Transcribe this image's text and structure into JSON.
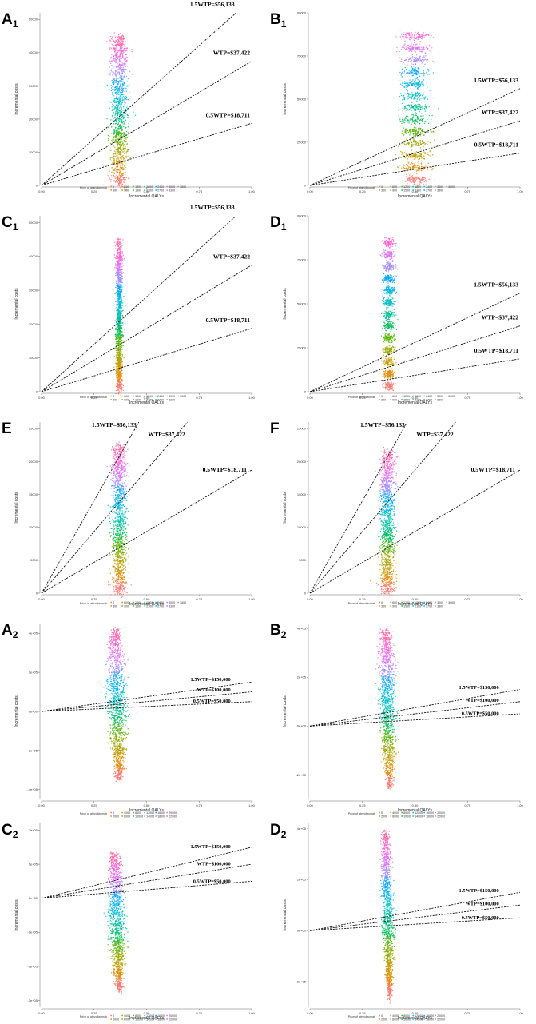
{
  "chart_data": [
    {
      "panel": "A",
      "subscript": "1",
      "type": "scatter",
      "xlabel": "Incremental QALYs",
      "ylabel": "Incremental costs",
      "xlim": [
        0,
        1
      ],
      "ylim": [
        0,
        52000
      ],
      "xticks": [
        "0.00",
        "0.25",
        "0.50",
        "0.75",
        "1.00"
      ],
      "yticks": [
        {
          "v": 0,
          "label": "0"
        },
        {
          "v": 10000,
          "label": "10000"
        },
        {
          "v": 20000,
          "label": "20000"
        },
        {
          "v": 30000,
          "label": "30000"
        },
        {
          "v": 40000,
          "label": "40000"
        },
        {
          "v": 50000,
          "label": "50000"
        }
      ],
      "cloud": {
        "x_center": 0.37,
        "x_halfwidth": 0.045,
        "y_min": 0,
        "y_max": 45000,
        "banded": false,
        "taper": false
      },
      "wtp_lines": [
        {
          "label": "1.5WTP=$56,133",
          "slope": 56133
        },
        {
          "label": "WTP=$37,422",
          "slope": 37422
        },
        {
          "label": "0.5WTP=$18,711",
          "slope": 18711
        }
      ],
      "legend": {
        "title": "Price of atezolizumab",
        "values": [
          "0",
          "300",
          "600",
          "900",
          "1200",
          "1500",
          "1800",
          "2100",
          "2400",
          "2700",
          "3000",
          "3300",
          "3600"
        ]
      }
    },
    {
      "panel": "B",
      "subscript": "1",
      "type": "scatter",
      "xlabel": "Incremental QALYs",
      "ylabel": "Incremental costs",
      "xlim": [
        0,
        1
      ],
      "ylim": [
        0,
        100000
      ],
      "xticks": [
        "0.00",
        "0.25",
        "0.50",
        "0.75",
        "1.00"
      ],
      "yticks": [
        {
          "v": 0,
          "label": "0"
        },
        {
          "v": 25000,
          "label": "25000"
        },
        {
          "v": 50000,
          "label": "50000"
        },
        {
          "v": 75000,
          "label": "75000"
        },
        {
          "v": 100000,
          "label": "100000"
        }
      ],
      "cloud": {
        "x_center": 0.5,
        "x_halfwidth": 0.075,
        "y_min": 0,
        "y_max": 90000,
        "banded": true,
        "taper": false
      },
      "wtp_lines": [
        {
          "label": "1.5WTP=$56,133",
          "slope": 56133
        },
        {
          "label": "WTP=$37,422",
          "slope": 37422
        },
        {
          "label": "0.5WTP=$18,711",
          "slope": 18711
        }
      ],
      "legend": {
        "title": "Price of atezolizumab",
        "values": [
          "0",
          "300",
          "600",
          "900",
          "1200",
          "1500",
          "1800",
          "2100",
          "2400",
          "2700",
          "3000",
          "3300",
          "3600"
        ]
      }
    },
    {
      "panel": "C",
      "subscript": "1",
      "type": "scatter",
      "xlabel": "Incremental QALYs",
      "ylabel": "Incremental costs",
      "xlim": [
        0,
        1
      ],
      "ylim": [
        0,
        52000
      ],
      "xticks": [
        "0.00",
        "0.25",
        "0.50",
        "0.75",
        "1.00"
      ],
      "yticks": [
        {
          "v": 0,
          "label": "0"
        },
        {
          "v": 10000,
          "label": "10000"
        },
        {
          "v": 20000,
          "label": "20000"
        },
        {
          "v": 30000,
          "label": "30000"
        },
        {
          "v": 40000,
          "label": "40000"
        },
        {
          "v": 50000,
          "label": "50000"
        }
      ],
      "cloud": {
        "x_center": 0.37,
        "x_halfwidth": 0.018,
        "y_min": 0,
        "y_max": 45000,
        "banded": false,
        "taper": false
      },
      "wtp_lines": [
        {
          "label": "1.5WTP=$56,133",
          "slope": 56133
        },
        {
          "label": "WTP=$37,422",
          "slope": 37422
        },
        {
          "label": "0.5WTP=$18,711",
          "slope": 18711
        }
      ],
      "legend": {
        "title": "Price of atezolizumab",
        "values": [
          "0",
          "300",
          "600",
          "900",
          "1200",
          "1500",
          "1800",
          "2100",
          "2400",
          "2700",
          "3000",
          "3300",
          "3600"
        ]
      }
    },
    {
      "panel": "D",
      "subscript": "1",
      "type": "scatter",
      "xlabel": "Incremental QALYs",
      "ylabel": "Incremental costs",
      "xlim": [
        0,
        1
      ],
      "ylim": [
        0,
        100000
      ],
      "xticks": [
        "0.00",
        "0.25",
        "0.50",
        "0.75",
        "1.00"
      ],
      "yticks": [
        {
          "v": 0,
          "label": "0"
        },
        {
          "v": 25000,
          "label": "25000"
        },
        {
          "v": 50000,
          "label": "50000"
        },
        {
          "v": 75000,
          "label": "75000"
        },
        {
          "v": 100000,
          "label": "100000"
        }
      ],
      "cloud": {
        "x_center": 0.375,
        "x_halfwidth": 0.03,
        "y_min": 0,
        "y_max": 88000,
        "banded": true,
        "taper": false
      },
      "wtp_lines": [
        {
          "label": "1.5WTP=$56,133",
          "slope": 56133
        },
        {
          "label": "WTP=$37,422",
          "slope": 37422
        },
        {
          "label": "0.5WTP=$18,711",
          "slope": 18711
        }
      ],
      "legend": {
        "title": "Price of atezolizumab",
        "values": [
          "0",
          "300",
          "600",
          "900",
          "1200",
          "1500",
          "1800",
          "2100",
          "2400",
          "2700",
          "3000",
          "3300",
          "3600"
        ]
      }
    },
    {
      "panel": "E",
      "subscript": "",
      "type": "scatter",
      "xlabel": "Incremental QALYs",
      "ylabel": "Incremental costs",
      "xlim": [
        0,
        1
      ],
      "ylim": [
        0,
        26000
      ],
      "xticks": [
        "0.00",
        "0.25",
        "0.50",
        "0.75",
        "1.00"
      ],
      "yticks": [
        {
          "v": 0,
          "label": "0"
        },
        {
          "v": 5000,
          "label": "5000"
        },
        {
          "v": 10000,
          "label": "10000"
        },
        {
          "v": 15000,
          "label": "15000"
        },
        {
          "v": 20000,
          "label": "20000"
        },
        {
          "v": 25000,
          "label": "25000"
        }
      ],
      "cloud": {
        "x_center": 0.37,
        "x_halfwidth": 0.038,
        "y_min": 0,
        "y_max": 22500,
        "banded": false,
        "taper": false
      },
      "wtp_lines": [
        {
          "label": "1.5WTP=$56,133",
          "slope": 56133
        },
        {
          "label": "WTP=$37,422",
          "slope": 37422
        },
        {
          "label": "0.5WTP=$18,711",
          "slope": 18711
        }
      ],
      "legend": {
        "title": "Price of atezolizumab",
        "values": [
          "0",
          "300",
          "600",
          "900",
          "1200",
          "1500",
          "1800",
          "2100",
          "2400",
          "2700",
          "3000",
          "3300",
          "3600"
        ]
      }
    },
    {
      "panel": "F",
      "subscript": "",
      "type": "scatter",
      "xlabel": "Incremental QALYs",
      "ylabel": "Incremental costs",
      "xlim": [
        0,
        1
      ],
      "ylim": [
        0,
        26000
      ],
      "xticks": [
        "0.00",
        "0.25",
        "0.50",
        "0.75",
        "1.00"
      ],
      "yticks": [
        {
          "v": 0,
          "label": "0"
        },
        {
          "v": 5000,
          "label": "5000"
        },
        {
          "v": 10000,
          "label": "10000"
        },
        {
          "v": 15000,
          "label": "15000"
        },
        {
          "v": 20000,
          "label": "20000"
        },
        {
          "v": 25000,
          "label": "25000"
        }
      ],
      "cloud": {
        "x_center": 0.37,
        "x_halfwidth": 0.038,
        "y_min": 0,
        "y_max": 21500,
        "banded": false,
        "taper": false
      },
      "wtp_lines": [
        {
          "label": "1.5WTP=$56,133",
          "slope": 56133
        },
        {
          "label": "WTP=$37,422",
          "slope": 37422
        },
        {
          "label": "0.5WTP=$18,711",
          "slope": 18711
        }
      ],
      "legend": {
        "title": "Price of atezolizumab",
        "values": [
          "0",
          "300",
          "600",
          "900",
          "1200",
          "1500",
          "1800",
          "2100",
          "2400",
          "2700",
          "3000",
          "3300",
          "3600"
        ]
      }
    },
    {
      "panel": "A",
      "subscript": "2",
      "type": "scatter",
      "xlabel": "Incremental QALYs",
      "ylabel": "Incremental costs",
      "xlim": [
        0,
        1
      ],
      "ylim": [
        -450000,
        450000
      ],
      "xticks": [
        "0.00",
        "0.25",
        "0.50",
        "0.75",
        "1.00"
      ],
      "yticks": [
        {
          "v": -400000,
          "label": "-4e+05"
        },
        {
          "v": -200000,
          "label": "-2e+05"
        },
        {
          "v": 0,
          "label": "0e+00"
        },
        {
          "v": 200000,
          "label": "2e+05"
        },
        {
          "v": 400000,
          "label": "4e+05"
        }
      ],
      "cloud": {
        "x_center": 0.36,
        "x_halfwidth": 0.05,
        "y_min": -350000,
        "y_max": 420000,
        "banded": false,
        "taper": true
      },
      "wtp_lines": [
        {
          "label": "1.5WTP=$150,000",
          "slope": 150000
        },
        {
          "label": "WTP=$100,000",
          "slope": 100000
        },
        {
          "label": "0.5WTP=$50,000",
          "slope": 50000
        }
      ],
      "legend": {
        "title": "Price of atezolizumab",
        "values": [
          "0",
          "2000",
          "4000",
          "6000",
          "8000",
          "10000",
          "12000",
          "14000",
          "16000",
          "18000",
          "20000",
          "22000"
        ]
      }
    },
    {
      "panel": "B",
      "subscript": "2",
      "type": "scatter",
      "xlabel": "Incremental QALYs",
      "ylabel": "Incremental costs",
      "xlim": [
        0,
        1
      ],
      "ylim": [
        -300000,
        420000
      ],
      "xticks": [
        "0.00",
        "0.25",
        "0.50",
        "0.75",
        "1.00"
      ],
      "yticks": [
        {
          "v": -200000,
          "label": "-2e+05"
        },
        {
          "v": 0,
          "label": "0e+00"
        },
        {
          "v": 200000,
          "label": "2e+05"
        },
        {
          "v": 400000,
          "label": "4e+05"
        }
      ],
      "cloud": {
        "x_center": 0.37,
        "x_halfwidth": 0.045,
        "y_min": -250000,
        "y_max": 390000,
        "banded": false,
        "taper": true
      },
      "wtp_lines": [
        {
          "label": "1.5WTP=$150,000",
          "slope": 150000
        },
        {
          "label": "WTP=$100,000",
          "slope": 100000
        },
        {
          "label": "0.5WTP=$50,000",
          "slope": 50000
        }
      ],
      "legend": {
        "title": "Price of atezolizumab",
        "values": [
          "0",
          "2000",
          "4000",
          "6000",
          "8000",
          "10000",
          "12000",
          "14000",
          "16000",
          "18000",
          "20000",
          "22000"
        ]
      }
    },
    {
      "panel": "C",
      "subscript": "2",
      "type": "scatter",
      "xlabel": "Incremental QALYs",
      "ylabel": "Incremental costs",
      "xlim": [
        0,
        1
      ],
      "ylim": [
        -320000,
        220000
      ],
      "xticks": [
        "0.00",
        "0.25",
        "0.50",
        "0.75",
        "1.00"
      ],
      "yticks": [
        {
          "v": -300000,
          "label": "-3e+05"
        },
        {
          "v": -200000,
          "label": "-2e+05"
        },
        {
          "v": -100000,
          "label": "-1e+05"
        },
        {
          "v": 0,
          "label": "0e+00"
        },
        {
          "v": 100000,
          "label": "1e+05"
        },
        {
          "v": 200000,
          "label": "2e+05"
        }
      ],
      "cloud": {
        "x_center": 0.36,
        "x_halfwidth": 0.045,
        "y_min": -270000,
        "y_max": 130000,
        "banded": false,
        "taper": true
      },
      "wtp_lines": [
        {
          "label": "1.5WTP=$150,000",
          "slope": 150000
        },
        {
          "label": "WTP=$100,000",
          "slope": 100000
        },
        {
          "label": "0.5WTP=$50,000",
          "slope": 50000
        }
      ],
      "legend": {
        "title": "Price of atezolizumab",
        "values": [
          "0",
          "2000",
          "4000",
          "6000",
          "8000",
          "10000",
          "12000",
          "14000",
          "16000",
          "18000",
          "20000",
          "22000"
        ]
      }
    },
    {
      "panel": "D",
      "subscript": "2",
      "type": "scatter",
      "xlabel": "Incremental QALYs",
      "ylabel": "Incremental costs",
      "xlim": [
        0,
        1
      ],
      "ylim": [
        -300000,
        420000
      ],
      "xticks": [
        "0.00",
        "0.25",
        "0.50",
        "0.75",
        "1.00"
      ],
      "yticks": [
        {
          "v": -200000,
          "label": "-2e+05"
        },
        {
          "v": 0,
          "label": "0e+00"
        },
        {
          "v": 200000,
          "label": "2e+05"
        },
        {
          "v": 400000,
          "label": "4e+05"
        }
      ],
      "cloud": {
        "x_center": 0.37,
        "x_halfwidth": 0.03,
        "y_min": -260000,
        "y_max": 390000,
        "banded": false,
        "taper": true
      },
      "wtp_lines": [
        {
          "label": "1.5WTP=$150,000",
          "slope": 150000
        },
        {
          "label": "WTP=$100,000",
          "slope": 100000
        },
        {
          "label": "0.5WTP=$50,000",
          "slope": 50000
        }
      ],
      "legend": {
        "title": "Price of atezolizumab",
        "values": [
          "0",
          "2000",
          "4000",
          "6000",
          "8000",
          "10000",
          "12000",
          "14000",
          "16000",
          "18000",
          "20000",
          "22000"
        ]
      }
    }
  ]
}
